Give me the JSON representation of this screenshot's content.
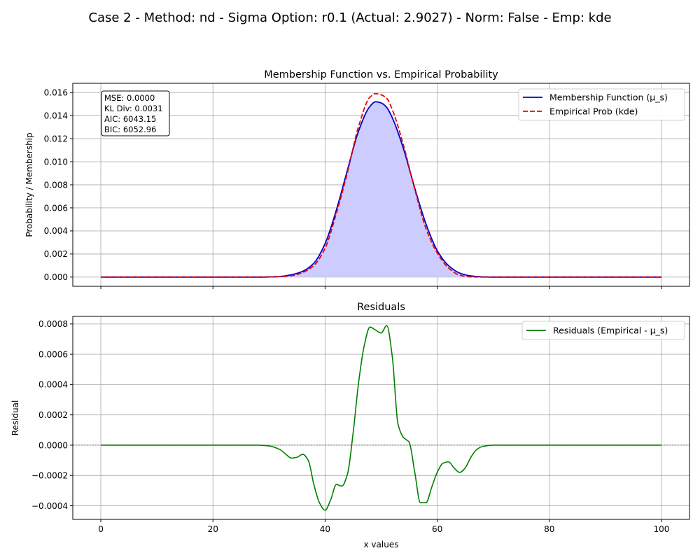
{
  "suptitle": "Case 2 - Method: nd - Sigma Option: r0.1 (Actual: 2.9027) - Norm: False - Emp: kde",
  "colors": {
    "membership": "#0000cc",
    "empirical": "#ee0000",
    "fill": "#ccccff",
    "residuals": "#008000",
    "zero_line": "#808080"
  },
  "chart_data": [
    {
      "type": "line",
      "title": "Membership Function vs. Empirical Probability",
      "xlabel": "",
      "ylabel": "Probability / Membership",
      "xlim": [
        -5,
        105
      ],
      "ylim": [
        -0.0008,
        0.0168
      ],
      "xticks": [
        0,
        20,
        40,
        60,
        80,
        100
      ],
      "yticks": [
        0.0,
        0.002,
        0.004,
        0.006,
        0.008,
        0.01,
        0.012,
        0.014,
        0.016
      ],
      "ytick_labels": [
        "0.000",
        "0.002",
        "0.004",
        "0.006",
        "0.008",
        "0.010",
        "0.012",
        "0.014",
        "0.016"
      ],
      "grid": true,
      "legend_position": "top-right",
      "stats_box": [
        "MSE: 0.0000",
        "KL Div: 0.0031",
        "AIC: 6043.15",
        "BIC: 6052.96"
      ],
      "series": [
        {
          "name": "Membership Function (μ_s)",
          "style": "solid",
          "x": [
            0,
            10,
            20,
            28,
            30,
            32,
            34,
            36,
            38,
            40,
            42,
            44,
            46,
            48,
            49,
            50,
            51,
            52,
            54,
            56,
            58,
            60,
            62,
            64,
            66,
            68,
            70,
            72,
            80,
            90,
            100
          ],
          "y": [
            0,
            0,
            0,
            0,
            1e-05,
            5e-05,
            0.0002,
            0.0005,
            0.0012,
            0.0029,
            0.0058,
            0.0093,
            0.0127,
            0.0148,
            0.0152,
            0.0151,
            0.0147,
            0.0138,
            0.0111,
            0.0077,
            0.0046,
            0.0023,
            0.001,
            0.00035,
            0.0001,
            2e-05,
            0,
            0,
            0,
            0,
            0
          ]
        },
        {
          "name": "Empirical Prob (kde)",
          "style": "dashed",
          "x": [
            0,
            10,
            20,
            28,
            30,
            32,
            34,
            36,
            38,
            40,
            42,
            44,
            46,
            48,
            49,
            50,
            51,
            52,
            54,
            56,
            58,
            60,
            62,
            64,
            66,
            68,
            70,
            72,
            80,
            90,
            100
          ],
          "y": [
            0,
            0,
            0,
            0,
            1e-05,
            4e-05,
            0.00012,
            0.0004,
            0.001,
            0.0025,
            0.0055,
            0.0091,
            0.0131,
            0.0156,
            0.0159,
            0.0158,
            0.0155,
            0.0145,
            0.0114,
            0.0076,
            0.0042,
            0.0021,
            0.0008,
            0.00017,
            2e-05,
            0,
            0,
            0,
            0,
            0,
            0
          ]
        }
      ]
    },
    {
      "type": "line",
      "title": "Residuals",
      "xlabel": "x values",
      "ylabel": "Residual",
      "xlim": [
        -5,
        105
      ],
      "ylim": [
        -0.00049,
        0.00085
      ],
      "xticks": [
        0,
        20,
        40,
        60,
        80,
        100
      ],
      "xtick_labels": [
        "0",
        "20",
        "40",
        "60",
        "80",
        "100"
      ],
      "yticks": [
        -0.0004,
        -0.0002,
        0.0,
        0.0002,
        0.0004,
        0.0006,
        0.0008
      ],
      "ytick_labels": [
        "−0.0004",
        "−0.0002",
        "0.0000",
        "0.0002",
        "0.0004",
        "0.0006",
        "0.0008"
      ],
      "grid": true,
      "legend_position": "top-right",
      "zero_line": 0,
      "series": [
        {
          "name": "Residuals (Empirical - μ_s)",
          "style": "solid",
          "x": [
            0,
            10,
            20,
            28,
            30,
            32,
            33,
            34,
            35,
            36,
            37,
            38,
            39,
            40,
            41,
            42,
            43,
            44,
            45,
            46,
            47,
            48,
            49,
            50,
            51,
            52,
            53,
            54,
            55,
            56,
            57,
            58,
            59,
            60,
            61,
            62,
            63,
            64,
            65,
            66,
            67,
            68,
            70,
            80,
            90,
            100
          ],
          "y": [
            0,
            0,
            0,
            0,
            -5e-06,
            -3e-05,
            -6e-05,
            -8.5e-05,
            -8e-05,
            -6e-05,
            -0.0001,
            -0.00026,
            -0.00038,
            -0.00043,
            -0.00036,
            -0.00026,
            -0.00027,
            -0.00019,
            8e-05,
            0.00042,
            0.00066,
            0.00078,
            0.00076,
            0.00074,
            0.00079,
            0.00058,
            0.00014,
            5e-05,
            2e-05,
            -0.00018,
            -0.00038,
            -0.00038,
            -0.00028,
            -0.00018,
            -0.00012,
            -0.00011,
            -0.00015,
            -0.00018,
            -0.00015,
            -8e-05,
            -3e-05,
            -1e-05,
            0,
            0,
            0,
            0
          ]
        }
      ]
    }
  ]
}
